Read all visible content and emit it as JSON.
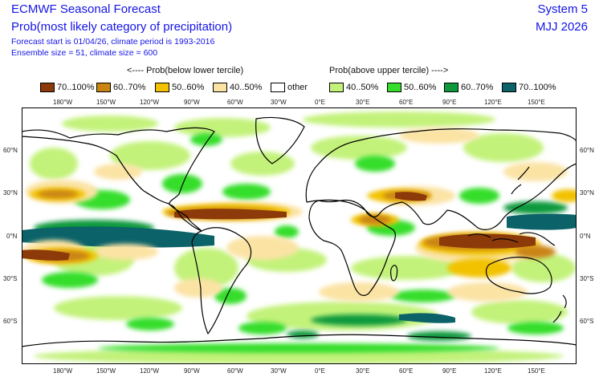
{
  "header": {
    "title": "ECMWF Seasonal Forecast",
    "subtitle": "Prob(most likely category of precipitation)",
    "forecast_line": "Forecast start is 01/04/26, climate period is 1993-2016",
    "ensemble_line": "Ensemble size = 51, climate size = 600",
    "system": "System 5",
    "period": "MJJ 2026"
  },
  "legend": {
    "below_header": "<---- Prob(below lower tercile)",
    "above_header": "Prob(above upper tercile) ---->",
    "items": [
      {
        "label": "70..100%",
        "color": "#8c3a0a"
      },
      {
        "label": "60..70%",
        "color": "#c98413"
      },
      {
        "label": "50..60%",
        "color": "#f2c200"
      },
      {
        "label": "40..50%",
        "color": "#fbe3a4"
      },
      {
        "label": "other",
        "color": "#ffffff"
      },
      {
        "label": "40..50%",
        "color": "#c3f27a"
      },
      {
        "label": "50..60%",
        "color": "#36de2c"
      },
      {
        "label": "60..70%",
        "color": "#0e9a3c"
      },
      {
        "label": "70..100%",
        "color": "#0b6268"
      }
    ]
  },
  "axes": {
    "lon_labels": [
      "180°W",
      "150°W",
      "120°W",
      "90°W",
      "60°W",
      "30°W",
      "0°E",
      "30°E",
      "60°E",
      "90°E",
      "120°E",
      "150°E"
    ],
    "lat_labels": [
      "60°N",
      "30°N",
      "0°N",
      "30°S",
      "60°S"
    ]
  }
}
